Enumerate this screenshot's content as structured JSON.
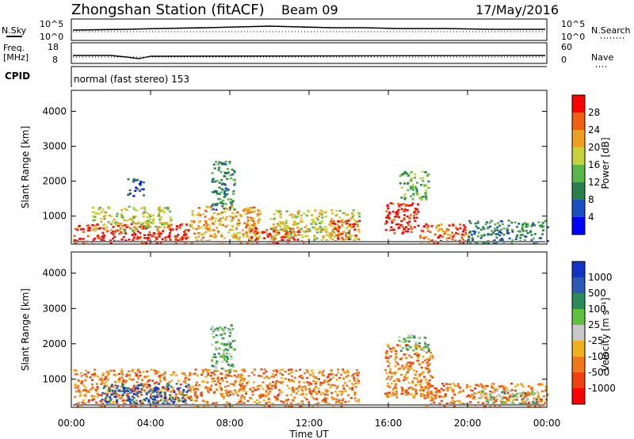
{
  "header": {
    "station": "Zhongshan Station (fitACF)",
    "beam": "Beam 09",
    "date": "17/May/2016"
  },
  "strip_labels": {
    "nsky": "N.Sky",
    "nsearch": "N.Search",
    "freq_line1": "Freq.",
    "freq_line2": "[MHz]",
    "nave": "Nave",
    "cpid": "CPID",
    "cpid_value": "normal (fast stereo) 153",
    "nsky_ticks": [
      "10^5",
      "10^0"
    ],
    "nsearch_ticks": [
      "10^5",
      "10^0"
    ],
    "freq_ticks": [
      "18",
      "8"
    ],
    "nave_ticks": [
      "60",
      "0"
    ]
  },
  "colors": {
    "power": [
      "#0000ff",
      "#1a4fbf",
      "#2a7f4a",
      "#5ab54a",
      "#c8d23a",
      "#f0a020",
      "#f06010",
      "#ff0000"
    ],
    "velocity": [
      "#1432c8",
      "#2a5ab4",
      "#2a8a5a",
      "#60c040",
      "#c8c8c8",
      "#f0b020",
      "#f07818",
      "#f04010",
      "#ff0000"
    ]
  },
  "chart_data": [
    {
      "type": "heatmap",
      "panel": "power",
      "ylabel": "Slant Range [km]",
      "xlabel": "Time UT",
      "x_ticks": [
        "00:00",
        "04:00",
        "08:00",
        "12:00",
        "16:00",
        "20:00",
        "00:00"
      ],
      "y_ticks": [
        1000,
        2000,
        3000,
        4000
      ],
      "ylim": [
        200,
        4600
      ],
      "xlim_hours": [
        0,
        24
      ],
      "colorbar_label": "Power [dB]",
      "colorbar_ticks": [
        4,
        8,
        12,
        16,
        20,
        24,
        28
      ],
      "blobs": [
        {
          "t0": 0.1,
          "t1": 6.0,
          "r0": 250,
          "r1": 800,
          "level": 7
        },
        {
          "t0": 1.0,
          "t1": 5.0,
          "r0": 600,
          "r1": 1300,
          "level": 4
        },
        {
          "t0": 6.0,
          "t1": 9.5,
          "r0": 250,
          "r1": 1300,
          "level": 5
        },
        {
          "t0": 8.8,
          "t1": 11.7,
          "r0": 250,
          "r1": 700,
          "level": 7
        },
        {
          "t0": 10.0,
          "t1": 14.5,
          "r0": 300,
          "r1": 1200,
          "level": 4
        },
        {
          "t0": 13.0,
          "t1": 14.5,
          "r0": 350,
          "r1": 900,
          "level": 6
        },
        {
          "t0": 15.8,
          "t1": 17.5,
          "r0": 500,
          "r1": 1400,
          "level": 7
        },
        {
          "t0": 16.5,
          "t1": 18.0,
          "r0": 1500,
          "r1": 2300,
          "level": 3
        },
        {
          "t0": 17.5,
          "t1": 20.0,
          "r0": 250,
          "r1": 800,
          "level": 6
        },
        {
          "t0": 20.0,
          "t1": 24.0,
          "r0": 250,
          "r1": 900,
          "level": 2
        },
        {
          "t0": 7.0,
          "t1": 8.2,
          "r0": 1200,
          "r1": 2600,
          "level": 2
        },
        {
          "t0": 2.8,
          "t1": 3.6,
          "r0": 1600,
          "r1": 2100,
          "level": 1
        }
      ]
    },
    {
      "type": "heatmap",
      "panel": "velocity",
      "ylabel": "Slant Range [km]",
      "xlabel": "Time UT",
      "x_ticks": [
        "00:00",
        "04:00",
        "08:00",
        "12:00",
        "16:00",
        "20:00",
        "00:00"
      ],
      "y_ticks": [
        1000,
        2000,
        3000,
        4000
      ],
      "ylim": [
        200,
        4600
      ],
      "xlim_hours": [
        0,
        24
      ],
      "colorbar_label": "Velocity [m s⁻¹]",
      "colorbar_ticks": [
        1000,
        500,
        100,
        25,
        -25,
        -100,
        -500,
        -1000
      ],
      "blobs": [
        {
          "t0": 0.1,
          "t1": 6.0,
          "r0": 250,
          "r1": 1300,
          "level": 6
        },
        {
          "t0": 1.5,
          "t1": 6.0,
          "r0": 300,
          "r1": 900,
          "level": 1
        },
        {
          "t0": 6.0,
          "t1": 14.5,
          "r0": 250,
          "r1": 1300,
          "level": 6
        },
        {
          "t0": 7.0,
          "t1": 8.2,
          "r0": 1200,
          "r1": 2600,
          "level": 3
        },
        {
          "t0": 15.8,
          "t1": 18.2,
          "r0": 500,
          "r1": 2000,
          "level": 6
        },
        {
          "t0": 16.5,
          "t1": 18.0,
          "r0": 1800,
          "r1": 2300,
          "level": 3
        },
        {
          "t0": 17.5,
          "t1": 24.0,
          "r0": 250,
          "r1": 900,
          "level": 6
        },
        {
          "t0": 20.5,
          "t1": 23.5,
          "r0": 300,
          "r1": 700,
          "level": 3
        }
      ]
    }
  ]
}
